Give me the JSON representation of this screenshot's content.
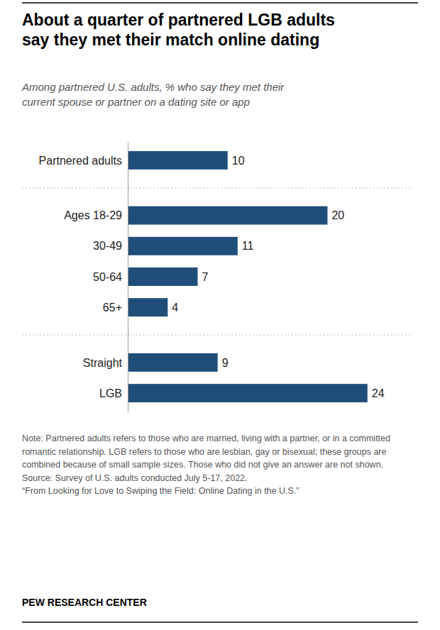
{
  "chart_data": {
    "type": "bar",
    "orientation": "horizontal",
    "title": "About a quarter of partnered LGB adults\nsay they met their match online dating",
    "subtitle": "Among partnered U.S. adults, % who say they met their\ncurrent spouse or partner on a dating site or app",
    "categories": [
      "Partnered adults",
      "Ages 18-29",
      "30-49",
      "50-64",
      "65+",
      "Straight",
      "LGB"
    ],
    "values": [
      10,
      20,
      11,
      7,
      4,
      9,
      24
    ],
    "color": "#1F4E79",
    "xlim": [
      0,
      27
    ],
    "data_labels": true,
    "tick_labels": "y",
    "grid": false,
    "note": "Note: Partnered adults refers to those who are married, living with a partner, or in a committed romantic relationship. LGB refers to those who are lesbian, gay or bisexual; these groups are combined because of small sample sizes. Those who did not give an answer are not shown.\nSource: Survey of U.S. adults conducted July 5-17, 2022.\n“From Looking for Love to Swiping the Field: Online Dating in the U.S.”",
    "source": "PEW RESEARCH CENTER"
  }
}
